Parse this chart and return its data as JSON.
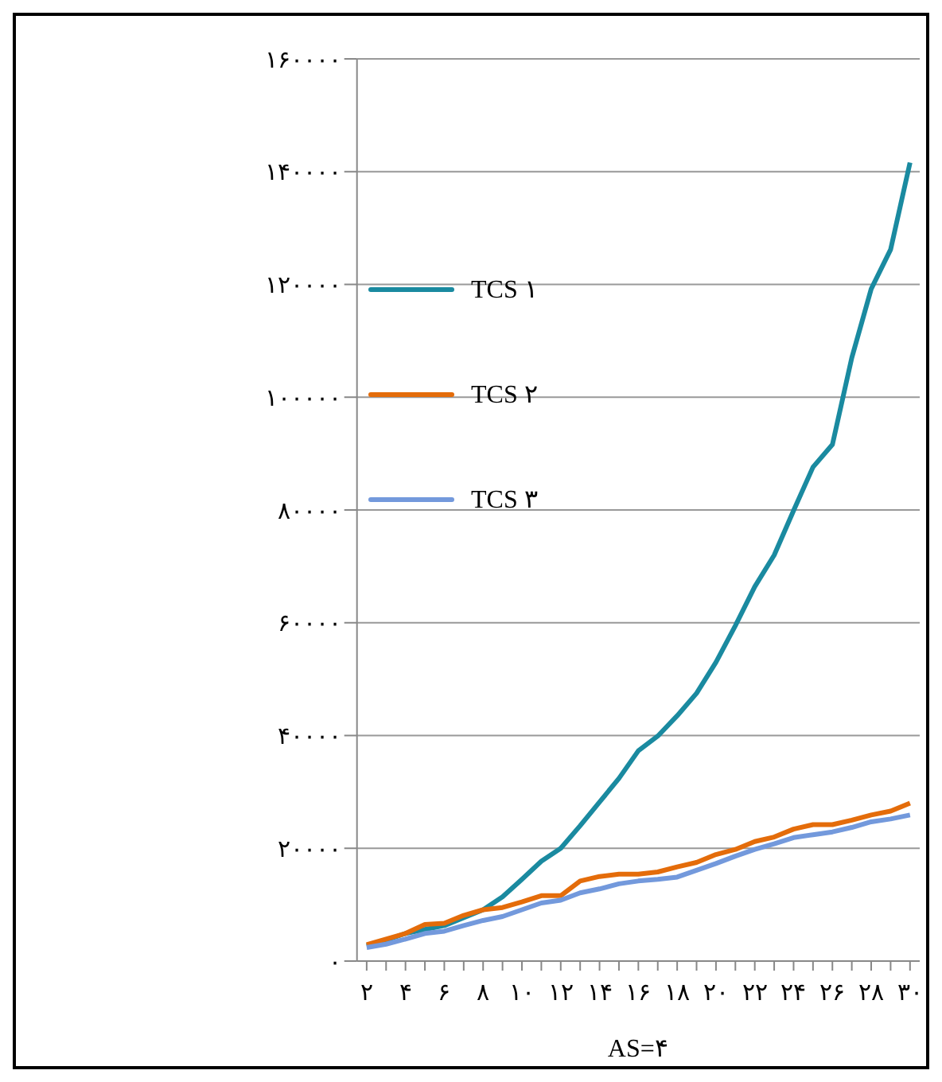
{
  "chart_data": {
    "type": "line",
    "xlabel": "AS=۴",
    "x": [
      2,
      3,
      4,
      5,
      6,
      7,
      8,
      9,
      10,
      11,
      12,
      13,
      14,
      15,
      16,
      17,
      18,
      19,
      20,
      21,
      22,
      23,
      24,
      25,
      26,
      27,
      28,
      29,
      30
    ],
    "series": [
      {
        "name": "TCS ۱",
        "color": "#1a8aa0",
        "values": [
          2700,
          3700,
          4900,
          5600,
          6300,
          7700,
          9100,
          11400,
          14500,
          17700,
          20000,
          24000,
          28200,
          32400,
          37300,
          39900,
          43500,
          47500,
          53000,
          59500,
          66400,
          72000,
          79900,
          87600,
          91600,
          107000,
          119200,
          126200,
          141600
        ]
      },
      {
        "name": "TCS ۲",
        "color": "#e46c0a",
        "values": [
          2900,
          3900,
          4900,
          6500,
          6700,
          8100,
          9100,
          9500,
          10500,
          11600,
          11600,
          14200,
          15000,
          15400,
          15400,
          15800,
          16700,
          17500,
          18900,
          19800,
          21200,
          22000,
          23400,
          24200,
          24200,
          25000,
          25900,
          26600,
          28000
        ]
      },
      {
        "name": "TCS ۳",
        "color": "#7399dc",
        "values": [
          2400,
          3000,
          3900,
          4900,
          5300,
          6300,
          7200,
          7900,
          9100,
          10300,
          10800,
          12100,
          12800,
          13700,
          14200,
          14500,
          14900,
          16100,
          17300,
          18600,
          19800,
          20800,
          21900,
          22400,
          22900,
          23700,
          24700,
          25200,
          25900
        ]
      }
    ],
    "xlim": [
      1.5,
      30.5
    ],
    "xticks": [
      {
        "value": 2,
        "label": "۲"
      },
      {
        "value": 3,
        "label": null
      },
      {
        "value": 4,
        "label": "۴"
      },
      {
        "value": 5,
        "label": null
      },
      {
        "value": 6,
        "label": "۶"
      },
      {
        "value": 7,
        "label": null
      },
      {
        "value": 8,
        "label": "۸"
      },
      {
        "value": 9,
        "label": null
      },
      {
        "value": 10,
        "label": "۱۰"
      },
      {
        "value": 11,
        "label": null
      },
      {
        "value": 12,
        "label": "۱۲"
      },
      {
        "value": 13,
        "label": null
      },
      {
        "value": 14,
        "label": "۱۴"
      },
      {
        "value": 15,
        "label": null
      },
      {
        "value": 16,
        "label": "۱۶"
      },
      {
        "value": 17,
        "label": null
      },
      {
        "value": 18,
        "label": "۱۸"
      },
      {
        "value": 19,
        "label": null
      },
      {
        "value": 20,
        "label": "۲۰"
      },
      {
        "value": 21,
        "label": null
      },
      {
        "value": 22,
        "label": "۲۲"
      },
      {
        "value": 23,
        "label": null
      },
      {
        "value": 24,
        "label": "۲۴"
      },
      {
        "value": 25,
        "label": null
      },
      {
        "value": 26,
        "label": "۲۶"
      },
      {
        "value": 27,
        "label": null
      },
      {
        "value": 28,
        "label": "۲۸"
      },
      {
        "value": 29,
        "label": null
      },
      {
        "value": 30,
        "label": "۳۰"
      }
    ],
    "ylim": [
      0,
      160000
    ],
    "yticks": [
      {
        "value": 0,
        "label": "۰"
      },
      {
        "value": 20000,
        "label": "۲۰۰۰۰"
      },
      {
        "value": 40000,
        "label": "۴۰۰۰۰"
      },
      {
        "value": 60000,
        "label": "۶۰۰۰۰"
      },
      {
        "value": 80000,
        "label": "۸۰۰۰۰"
      },
      {
        "value": 100000,
        "label": "۱۰۰۰۰۰"
      },
      {
        "value": 120000,
        "label": "۱۲۰۰۰۰"
      },
      {
        "value": 140000,
        "label": "۱۴۰۰۰۰"
      },
      {
        "value": 160000,
        "label": "۱۶۰۰۰۰"
      }
    ],
    "grid": "y",
    "legend": "top left",
    "marker": "none",
    "line_style": "solid"
  }
}
